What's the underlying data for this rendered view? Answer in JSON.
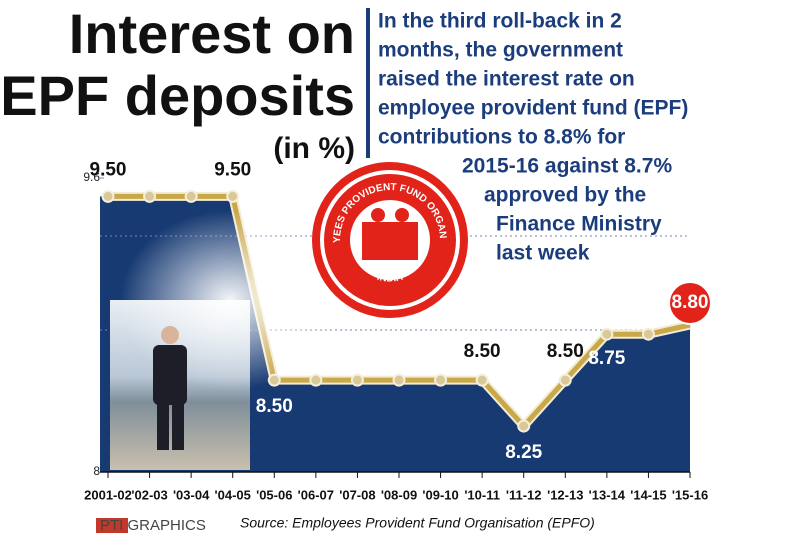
{
  "chart_data": {
    "type": "line",
    "title_lines": [
      "Interest on",
      "EPF deposits"
    ],
    "subtitle": "(in %)",
    "annotation": [
      "In the third roll-back in 2",
      "months, the government",
      "raised the interest rate on",
      "employee provident fund (EPF)",
      "contributions to 8.8% for",
      "2015-16 against 8.7%",
      "approved by the",
      "Finance Ministry",
      "last week"
    ],
    "source": "Source: Employees Provident Fund Organisation (EPFO)",
    "credit": "PTI GRAPHICS",
    "emblem": {
      "top": "EMPLOYEES PROVIDENT FUND ORGANISATION",
      "bottom": "INDIA"
    },
    "categories": [
      "2001-02",
      "'02-03",
      "'03-04",
      "'04-05",
      "'05-06",
      "'06-07",
      "'07-08",
      "'08-09",
      "'09-10",
      "'10-11",
      "'11-12",
      "'12-13",
      "'13-14",
      "'14-15",
      "'15-16"
    ],
    "values": [
      9.5,
      9.5,
      9.5,
      9.5,
      8.5,
      8.5,
      8.5,
      8.5,
      8.5,
      8.5,
      8.25,
      8.5,
      8.75,
      8.75,
      8.8
    ],
    "value_labels": [
      "9.50",
      null,
      null,
      "9.50",
      "8.50",
      null,
      null,
      null,
      null,
      "8.50",
      "8.25",
      "8.50",
      "8.75",
      null,
      "8.80"
    ],
    "ylim": [
      8,
      9.6
    ],
    "yticks": [
      8,
      9.6
    ],
    "area_color": "#173a72",
    "line_color": "#c9a84a",
    "highlight_color": "#e2231a"
  }
}
